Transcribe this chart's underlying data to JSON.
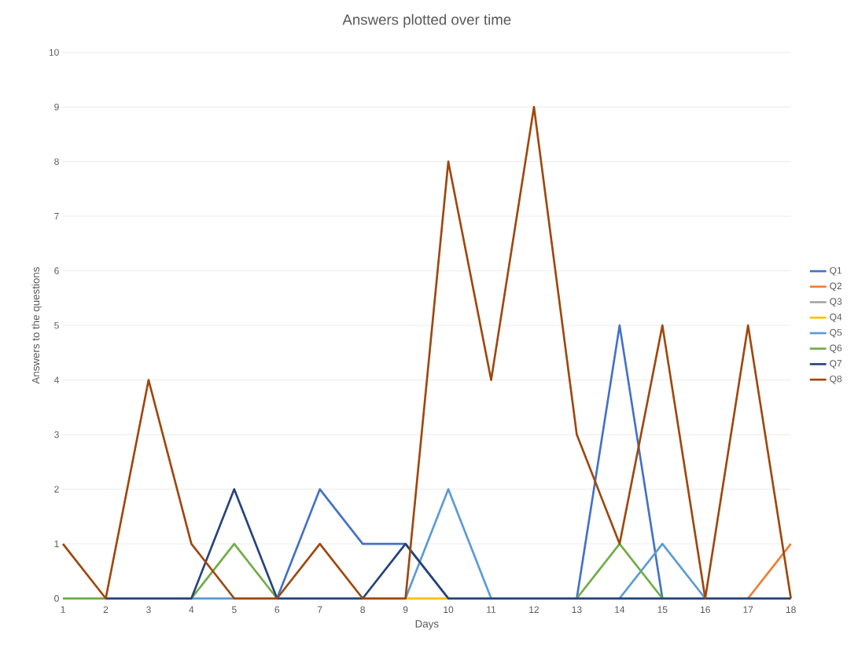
{
  "chart_data": {
    "type": "line",
    "title": "Answers plotted over time",
    "xlabel": "Days",
    "ylabel": "Answers to the questions",
    "categories": [
      "1",
      "2",
      "3",
      "4",
      "5",
      "6",
      "7",
      "8",
      "9",
      "10",
      "11",
      "12",
      "13",
      "14",
      "15",
      "16",
      "17",
      "18"
    ],
    "series": [
      {
        "name": "Q1",
        "color": "#4472c4",
        "values": [
          null,
          null,
          null,
          null,
          null,
          0,
          2,
          1,
          1,
          0,
          null,
          null,
          0,
          5,
          0,
          null,
          null,
          null
        ]
      },
      {
        "name": "Q2",
        "color": "#ed7d31",
        "values": [
          null,
          null,
          null,
          null,
          null,
          null,
          null,
          null,
          null,
          null,
          null,
          null,
          null,
          null,
          null,
          null,
          0,
          1
        ]
      },
      {
        "name": "Q3",
        "color": "#a5a5a5",
        "values": [
          null,
          null,
          null,
          null,
          null,
          null,
          null,
          null,
          null,
          null,
          null,
          null,
          null,
          null,
          null,
          null,
          null,
          null
        ]
      },
      {
        "name": "Q4",
        "color": "#ffc000",
        "values": [
          null,
          null,
          null,
          null,
          null,
          null,
          null,
          null,
          0,
          0,
          null,
          null,
          null,
          null,
          null,
          null,
          null,
          null
        ]
      },
      {
        "name": "Q5",
        "color": "#5b9bd5",
        "values": [
          null,
          null,
          null,
          0,
          0,
          null,
          null,
          null,
          0,
          2,
          0,
          null,
          null,
          0,
          1,
          0,
          null,
          null
        ]
      },
      {
        "name": "Q6",
        "color": "#70ad47",
        "values": [
          0,
          0,
          null,
          0,
          1,
          0,
          null,
          null,
          null,
          null,
          null,
          null,
          0,
          1,
          0,
          null,
          null,
          null
        ]
      },
      {
        "name": "Q7",
        "color": "#264478",
        "values": [
          null,
          0,
          0,
          0,
          2,
          0,
          0,
          0,
          1,
          0,
          0,
          0,
          0,
          0,
          0,
          0,
          0,
          0
        ]
      },
      {
        "name": "Q8",
        "color": "#9e480e",
        "values": [
          1,
          0,
          4,
          1,
          0,
          0,
          1,
          0,
          0,
          8,
          4,
          9,
          3,
          1,
          5,
          0,
          5,
          0
        ]
      }
    ],
    "ylim": [
      0,
      10
    ],
    "yticks": [
      0,
      1,
      2,
      3,
      4,
      5,
      6,
      7,
      8,
      9,
      10
    ],
    "grid": "y",
    "legend": "right",
    "line_style": "solid"
  }
}
